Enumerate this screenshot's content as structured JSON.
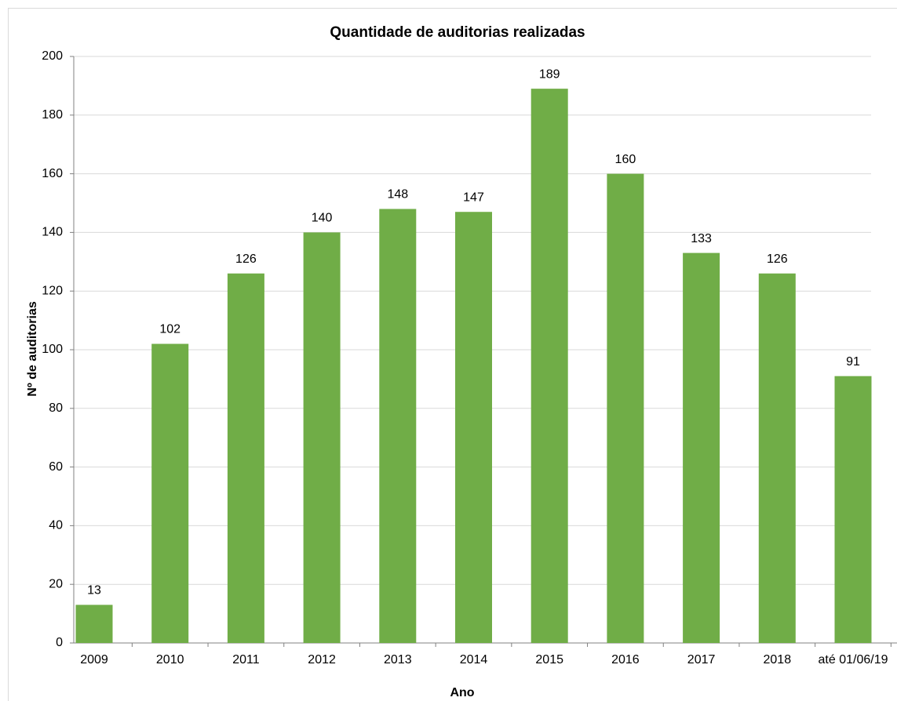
{
  "chart_data": {
    "type": "bar",
    "title": "Quantidade de auditorias realizadas",
    "x_label": "Ano",
    "y_label": "Nº de auditorias",
    "categories": [
      "2009",
      "2010",
      "2011",
      "2012",
      "2013",
      "2014",
      "2015",
      "2016",
      "2017",
      "2018",
      "até 01/06/19"
    ],
    "values": [
      13,
      102,
      126,
      140,
      148,
      147,
      189,
      160,
      133,
      126,
      91
    ],
    "color": "#70ad47",
    "ylim": [
      0,
      200
    ],
    "yticks": [
      0,
      20,
      40,
      60,
      80,
      100,
      120,
      140,
      160,
      180,
      200
    ],
    "grid": true
  }
}
